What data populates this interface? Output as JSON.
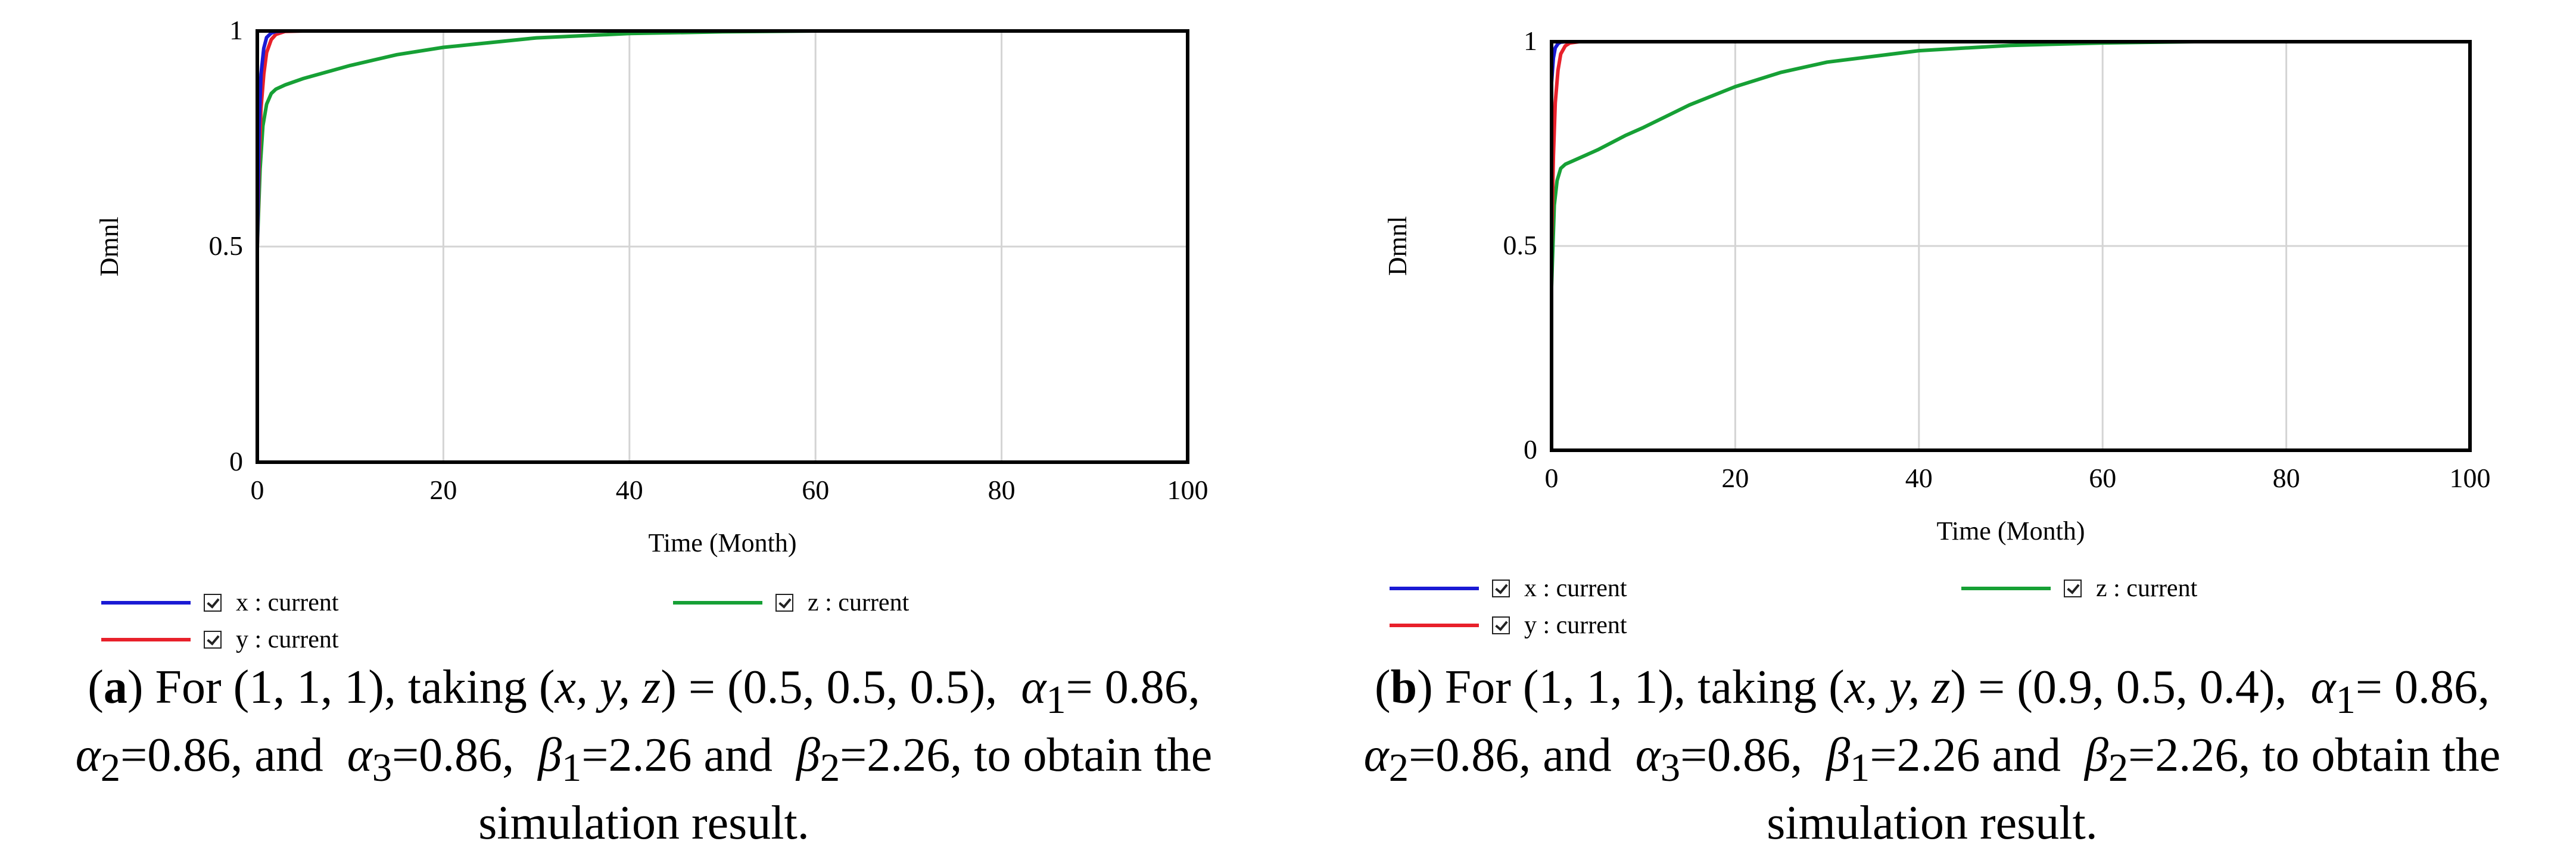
{
  "chart_data": [
    {
      "type": "line",
      "panel_label": "a",
      "xlabel": "Time (Month)",
      "ylabel": "Dmnl",
      "xlim": [
        0,
        100
      ],
      "ylim": [
        0,
        1
      ],
      "xticks": [
        "0",
        "20",
        "40",
        "60",
        "80",
        "100"
      ],
      "yticks": [
        "0",
        "0.5",
        "1"
      ],
      "grid": true,
      "legend": "bottom",
      "series": [
        {
          "name": "x : current",
          "color": "#1a1ad4",
          "x": [
            0,
            0.2,
            0.4,
            0.7,
            1,
            1.5,
            2,
            3,
            5,
            100
          ],
          "y": [
            0.5,
            0.78,
            0.9,
            0.96,
            0.985,
            0.995,
            0.999,
            1,
            1,
            1
          ]
        },
        {
          "name": "y : current",
          "color": "#e8202a",
          "x": [
            0,
            0.2,
            0.4,
            0.7,
            1,
            1.5,
            2,
            3,
            5,
            100
          ],
          "y": [
            0.5,
            0.7,
            0.82,
            0.9,
            0.95,
            0.98,
            0.992,
            0.999,
            1,
            1
          ]
        },
        {
          "name": "z : current",
          "color": "#16a035",
          "x": [
            0,
            0.3,
            0.6,
            1,
            1.5,
            2,
            3,
            5,
            10,
            15,
            20,
            30,
            40,
            50,
            60,
            80,
            100
          ],
          "y": [
            0.5,
            0.68,
            0.78,
            0.83,
            0.855,
            0.865,
            0.875,
            0.89,
            0.92,
            0.945,
            0.962,
            0.984,
            0.994,
            0.998,
            1,
            1,
            1
          ]
        }
      ]
    },
    {
      "type": "line",
      "panel_label": "b",
      "xlabel": "Time (Month)",
      "ylabel": "Dmnl",
      "xlim": [
        0,
        100
      ],
      "ylim": [
        0,
        1
      ],
      "xticks": [
        "0",
        "20",
        "40",
        "60",
        "80",
        "100"
      ],
      "yticks": [
        "0",
        "0.5",
        "1"
      ],
      "grid": true,
      "legend": "bottom",
      "series": [
        {
          "name": "x : current",
          "color": "#1a1ad4",
          "x": [
            0,
            0.2,
            0.4,
            0.7,
            1,
            1.5,
            2,
            3,
            100
          ],
          "y": [
            0.9,
            0.96,
            0.985,
            0.995,
            0.999,
            1,
            1,
            1,
            1
          ]
        },
        {
          "name": "y : current",
          "color": "#e8202a",
          "x": [
            0,
            0.2,
            0.4,
            0.7,
            1,
            1.5,
            2,
            3,
            5,
            100
          ],
          "y": [
            0.5,
            0.72,
            0.85,
            0.93,
            0.97,
            0.99,
            0.997,
            1,
            1,
            1
          ]
        },
        {
          "name": "z : current",
          "color": "#16a035",
          "x": [
            0,
            0.3,
            0.6,
            1,
            1.5,
            2,
            3,
            5,
            8,
            10,
            15,
            20,
            25,
            30,
            40,
            50,
            60,
            70,
            80,
            100
          ],
          "y": [
            0.4,
            0.6,
            0.66,
            0.69,
            0.7,
            0.705,
            0.715,
            0.735,
            0.77,
            0.79,
            0.845,
            0.89,
            0.925,
            0.95,
            0.978,
            0.991,
            0.997,
            1,
            1,
            1
          ]
        }
      ]
    }
  ],
  "captions": [
    {
      "label": "a",
      "line1_pre": ") For (1, 1, 1), taking (",
      "vars": "x, y, z",
      "line1_post": ") = (0.5, 0.5, 0.5),",
      "a1": "= 0.86,",
      "a2": "=0.86, and",
      "a3": "=0.86,",
      "b1": "=2.26 and",
      "b2": "=2.26, to obtain the",
      "line3": "simulation result."
    },
    {
      "label": "b",
      "line1_pre": ") For (1, 1, 1), taking (",
      "vars": "x, y, z",
      "line1_post": ") = (0.9, 0.5, 0.4),",
      "a1": "= 0.86,",
      "a2": "=0.86, and",
      "a3": "=0.86,",
      "b1": "=2.26 and",
      "b2": "=2.26, to obtain the",
      "line3": "simulation result."
    }
  ]
}
